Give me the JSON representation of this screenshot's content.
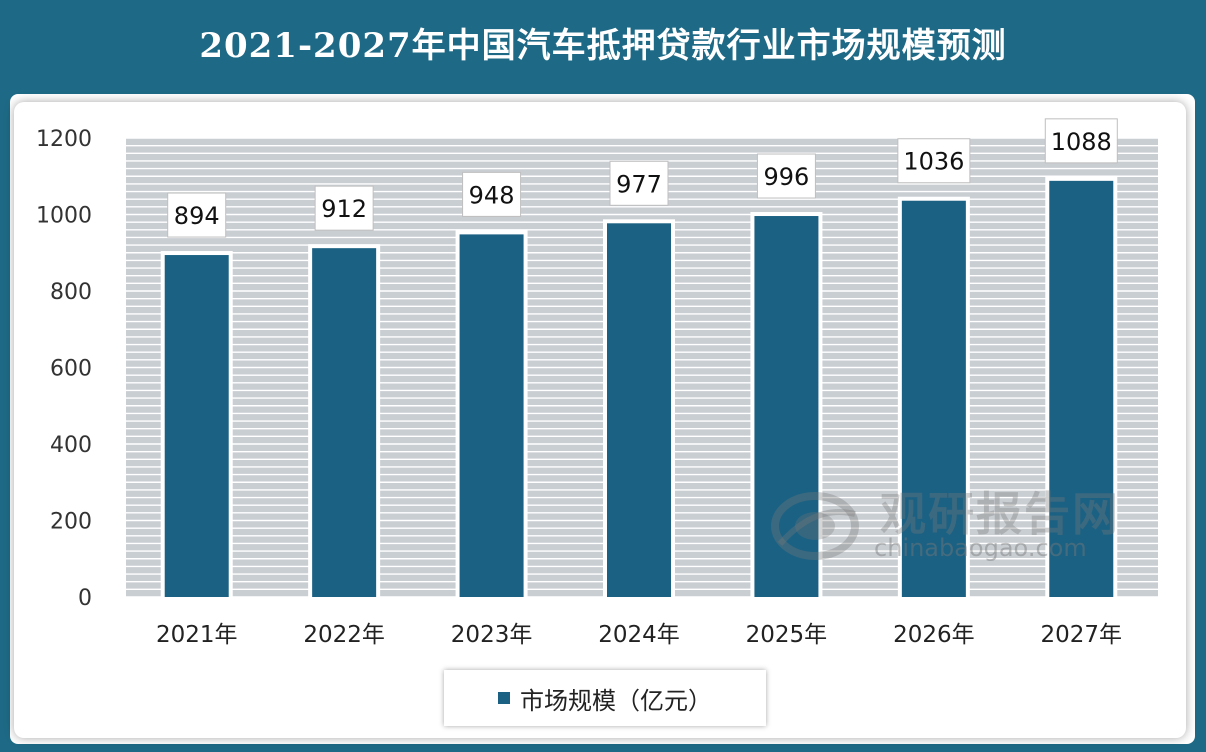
{
  "title": "2021-2027年中国汽车抵押贷款行业市场规模预测",
  "colors": {
    "header": "#1e6a86",
    "bar": "#1b6183"
  },
  "watermark": {
    "name": "观研报告网",
    "url": "chinabaogao.com",
    "icon": "globe-logo-icon"
  },
  "chart_data": {
    "type": "bar",
    "categories": [
      "2021年",
      "2022年",
      "2023年",
      "2024年",
      "2025年",
      "2026年",
      "2027年"
    ],
    "series": [
      {
        "name": "市场规模（亿元）",
        "values": [
          894,
          912,
          948,
          977,
          996,
          1036,
          1088
        ]
      }
    ],
    "ylim": [
      0,
      1200
    ],
    "yticks": [
      0,
      200,
      400,
      600,
      800,
      1000,
      1200
    ],
    "grid": true,
    "legend": "bottom-center",
    "data_labels": true
  }
}
